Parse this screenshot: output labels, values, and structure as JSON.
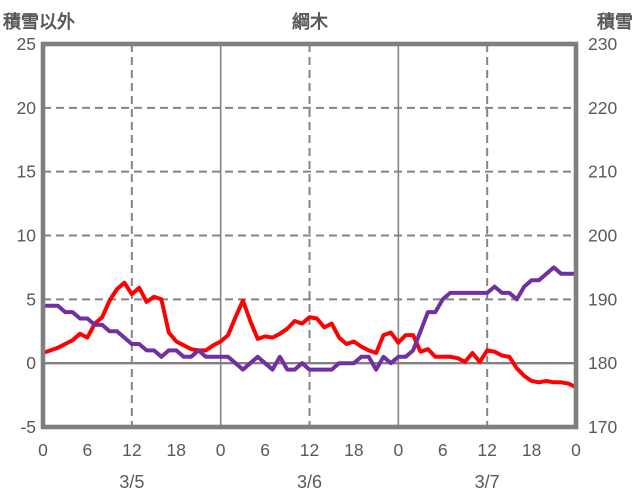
{
  "chart_data": {
    "type": "line",
    "title": "綱木",
    "left_axis": {
      "title": "積雪以外",
      "min": -5,
      "max": 25,
      "ticks": [
        25,
        20,
        15,
        10,
        5,
        0,
        -5
      ]
    },
    "right_axis": {
      "title": "積雪",
      "min": 170,
      "max": 230,
      "ticks": [
        230,
        220,
        210,
        200,
        190,
        180,
        170
      ]
    },
    "x_axis": {
      "hours_total": 72,
      "tick_interval_hours": 6,
      "tick_labels": [
        "0",
        "6",
        "12",
        "18",
        "0",
        "6",
        "12",
        "18",
        "0",
        "6",
        "12",
        "18",
        "0"
      ],
      "date_labels": [
        {
          "label": "3/5",
          "center_hour": 12
        },
        {
          "label": "3/6",
          "center_hour": 36
        },
        {
          "label": "3/7",
          "center_hour": 60
        }
      ],
      "dashed_gridline_hours": [
        12,
        36,
        60
      ],
      "solid_gridline_hours": [
        24,
        48
      ]
    },
    "dashed_gridline_left_values": [
      5,
      10,
      15,
      20
    ],
    "zero_line_left_value": 0,
    "series": [
      {
        "name": "積雪以外",
        "axis": "left",
        "color": "#ff0000",
        "x_start_hour": 0,
        "x_interval_hours": 1,
        "values": [
          0.8,
          1.0,
          1.2,
          1.5,
          1.8,
          2.3,
          2.0,
          3.1,
          3.6,
          4.9,
          5.8,
          6.3,
          5.4,
          5.9,
          4.8,
          5.2,
          5.0,
          2.4,
          1.7,
          1.4,
          1.1,
          1.0,
          1.0,
          1.4,
          1.7,
          2.2,
          3.6,
          4.9,
          3.3,
          1.9,
          2.1,
          2.0,
          2.3,
          2.7,
          3.3,
          3.1,
          3.6,
          3.5,
          2.8,
          3.1,
          2.0,
          1.5,
          1.7,
          1.3,
          1.0,
          0.8,
          2.2,
          2.4,
          1.6,
          2.2,
          2.2,
          0.9,
          1.1,
          0.5,
          0.5,
          0.5,
          0.4,
          0.1,
          0.8,
          0.1,
          1.0,
          0.9,
          0.6,
          0.5,
          -0.4,
          -1.0,
          -1.4,
          -1.5,
          -1.4,
          -1.5,
          -1.5,
          -1.6,
          -1.9
        ]
      },
      {
        "name": "積雪",
        "axis": "right",
        "color": "#7030a0",
        "x_start_hour": 0,
        "x_interval_hours": 1,
        "values": [
          189,
          189,
          189,
          188,
          188,
          187,
          187,
          186,
          186,
          185,
          185,
          184,
          183,
          183,
          182,
          182,
          181,
          182,
          182,
          181,
          181,
          182,
          181,
          181,
          181,
          181,
          180,
          179,
          180,
          181,
          180,
          179,
          181,
          179,
          179,
          180,
          179,
          179,
          179,
          179,
          180,
          180,
          180,
          181,
          181,
          179,
          181,
          180,
          181,
          181,
          182,
          185,
          188,
          188,
          190,
          191,
          191,
          191,
          191,
          191,
          191,
          192,
          191,
          191,
          190,
          192,
          193,
          193,
          194,
          195,
          194,
          194,
          194
        ]
      }
    ],
    "colors": {
      "plot_border": "#7f7f7f",
      "grid": "#858585",
      "zero_line": "#808080",
      "text": "#595959",
      "background": "#ffffff"
    }
  }
}
